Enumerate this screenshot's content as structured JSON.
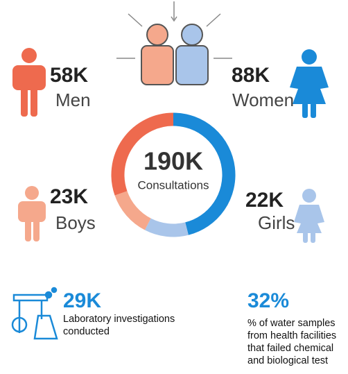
{
  "chart_data": {
    "type": "donut",
    "categories": [
      "Women",
      "Girls",
      "Boys",
      "Men"
    ],
    "values": [
      88000,
      22000,
      23000,
      58000
    ],
    "value_labels": [
      "88K",
      "22K",
      "23K",
      "58K"
    ],
    "colors": [
      "#1a8ad8",
      "#a9c5ea",
      "#f5a88c",
      "#ee6a4e"
    ],
    "center_value": "190K",
    "center_label": "Consultations"
  },
  "stats": [
    {
      "value": "29K",
      "lines": [
        "Laboratory investigations",
        "conducted"
      ]
    },
    {
      "value": "32%",
      "lines": [
        "% of water samples",
        "from health facilities",
        "that failed chemical",
        "and biological test"
      ]
    }
  ]
}
